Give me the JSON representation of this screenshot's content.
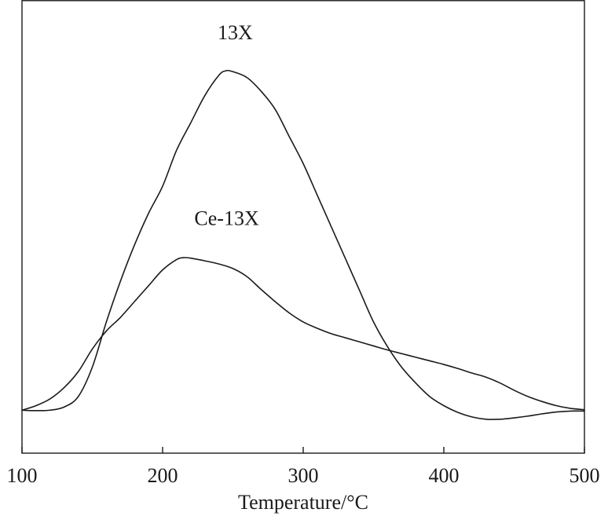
{
  "chart_data": {
    "type": "line",
    "title": "",
    "xlabel": "Temperature/°C",
    "ylabel": "",
    "xlim": [
      100,
      500
    ],
    "ylim": [
      0,
      1
    ],
    "x_ticks": [
      "100",
      "200",
      "300",
      "400",
      "500"
    ],
    "y_ticks": [],
    "grid": false,
    "legend": "none",
    "series": [
      {
        "name": "13X",
        "color": "#1a1a1a",
        "points": [
          [
            100,
            0.095
          ],
          [
            110,
            0.094
          ],
          [
            120,
            0.095
          ],
          [
            130,
            0.102
          ],
          [
            140,
            0.125
          ],
          [
            150,
            0.19
          ],
          [
            160,
            0.29
          ],
          [
            170,
            0.38
          ],
          [
            180,
            0.46
          ],
          [
            190,
            0.53
          ],
          [
            200,
            0.59
          ],
          [
            210,
            0.67
          ],
          [
            220,
            0.73
          ],
          [
            230,
            0.79
          ],
          [
            240,
            0.835
          ],
          [
            245,
            0.845
          ],
          [
            250,
            0.843
          ],
          [
            260,
            0.83
          ],
          [
            270,
            0.8
          ],
          [
            280,
            0.76
          ],
          [
            290,
            0.7
          ],
          [
            300,
            0.64
          ],
          [
            310,
            0.57
          ],
          [
            320,
            0.5
          ],
          [
            330,
            0.43
          ],
          [
            340,
            0.36
          ],
          [
            350,
            0.29
          ],
          [
            360,
            0.235
          ],
          [
            370,
            0.19
          ],
          [
            380,
            0.155
          ],
          [
            390,
            0.125
          ],
          [
            400,
            0.105
          ],
          [
            410,
            0.09
          ],
          [
            420,
            0.08
          ],
          [
            430,
            0.075
          ],
          [
            440,
            0.075
          ],
          [
            450,
            0.078
          ],
          [
            460,
            0.082
          ],
          [
            470,
            0.087
          ],
          [
            480,
            0.091
          ],
          [
            490,
            0.093
          ],
          [
            500,
            0.093
          ]
        ]
      },
      {
        "name": "Ce-13X",
        "color": "#1a1a1a",
        "points": [
          [
            100,
            0.095
          ],
          [
            110,
            0.105
          ],
          [
            120,
            0.12
          ],
          [
            130,
            0.145
          ],
          [
            140,
            0.18
          ],
          [
            150,
            0.23
          ],
          [
            160,
            0.27
          ],
          [
            170,
            0.3
          ],
          [
            180,
            0.335
          ],
          [
            190,
            0.37
          ],
          [
            200,
            0.405
          ],
          [
            210,
            0.428
          ],
          [
            215,
            0.432
          ],
          [
            220,
            0.431
          ],
          [
            230,
            0.425
          ],
          [
            240,
            0.418
          ],
          [
            250,
            0.408
          ],
          [
            260,
            0.39
          ],
          [
            270,
            0.362
          ],
          [
            280,
            0.335
          ],
          [
            290,
            0.31
          ],
          [
            300,
            0.29
          ],
          [
            310,
            0.276
          ],
          [
            320,
            0.264
          ],
          [
            330,
            0.255
          ],
          [
            340,
            0.246
          ],
          [
            350,
            0.237
          ],
          [
            360,
            0.228
          ],
          [
            370,
            0.22
          ],
          [
            380,
            0.212
          ],
          [
            390,
            0.204
          ],
          [
            400,
            0.196
          ],
          [
            410,
            0.187
          ],
          [
            420,
            0.177
          ],
          [
            430,
            0.168
          ],
          [
            440,
            0.155
          ],
          [
            450,
            0.139
          ],
          [
            460,
            0.125
          ],
          [
            470,
            0.114
          ],
          [
            480,
            0.105
          ],
          [
            490,
            0.099
          ],
          [
            500,
            0.096
          ]
        ]
      }
    ],
    "annotations": [
      {
        "text": "13X",
        "x": 246,
        "y": 0.93
      },
      {
        "text": "Ce-13X",
        "x": 240,
        "y": 0.52
      }
    ]
  }
}
